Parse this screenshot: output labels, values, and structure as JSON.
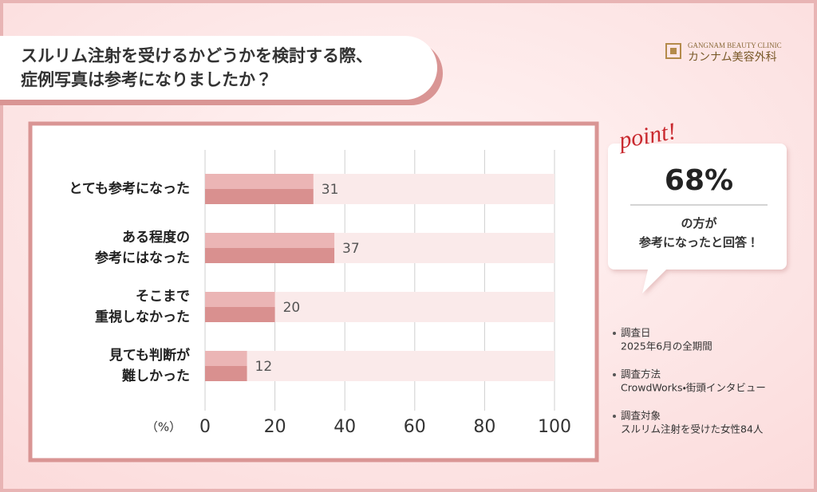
{
  "chart_data": {
    "type": "hbar",
    "title": "スルリム注射を受けるかどうかを検討する際、\n症例写真は参考になりましたか？",
    "categories": [
      "とても参考になった",
      "ある程度の\n参考にはなった",
      "そこまで\n重視しなかった",
      "見ても判断が\n難しかった"
    ],
    "values": [
      31,
      37,
      20,
      12
    ],
    "colors": [
      "#ebb5b5",
      "#d9908f"
    ],
    "track_color": "#faeaea",
    "xlim": [
      0,
      100
    ],
    "xticks": [
      0,
      20,
      40,
      60,
      80,
      100
    ],
    "xlabel": "（%）",
    "grid": true
  },
  "brand": {
    "tagline": "GANGNAM BEAUTY CLINIC",
    "name": "カンナム美容外科"
  },
  "point": {
    "tag": "point!",
    "stat": "68%",
    "text": "の方が\n参考になったと回答！"
  },
  "survey": [
    {
      "label": "調査日",
      "value": "2025年6月の全期間"
    },
    {
      "label": "調査方法",
      "value": "CrowdWorks・街頭インタビュー"
    },
    {
      "label": "調査対象",
      "value": "スルリム注射を受けた女性84人"
    }
  ]
}
